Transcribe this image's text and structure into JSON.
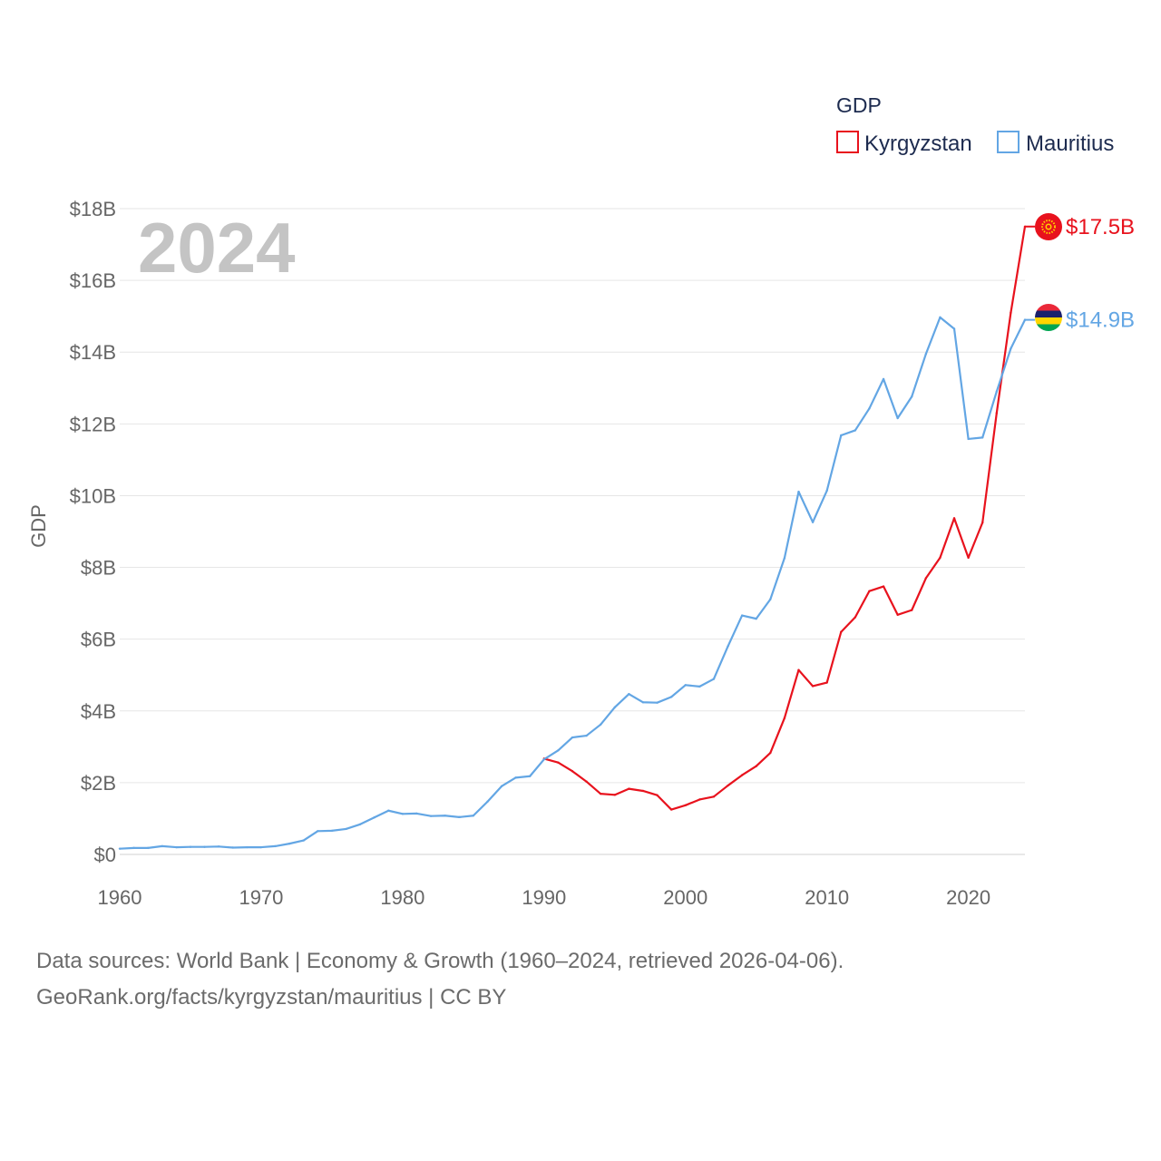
{
  "chart_data": {
    "type": "line",
    "title": "GDP",
    "year_label": "2024",
    "ylabel": "GDP",
    "xlabel": "",
    "xlim": [
      1960,
      2024
    ],
    "ylim": [
      0,
      18
    ],
    "x_ticks": [
      "1960",
      "1970",
      "1980",
      "1990",
      "2000",
      "2010",
      "2020"
    ],
    "y_ticks": [
      "$0",
      "$2B",
      "$4B",
      "$6B",
      "$8B",
      "$10B",
      "$12B",
      "$14B",
      "$16B",
      "$18B"
    ],
    "legend_position": "top-right",
    "grid": true,
    "series": [
      {
        "name": "Kyrgyzstan",
        "color": "#e8121d",
        "end_label": "$17.5B",
        "flag": "kyrgyzstan-flag",
        "x": [
          1990,
          1991,
          1992,
          1993,
          1994,
          1995,
          1996,
          1997,
          1998,
          1999,
          2000,
          2001,
          2002,
          2003,
          2004,
          2005,
          2006,
          2007,
          2008,
          2009,
          2010,
          2011,
          2012,
          2013,
          2014,
          2015,
          2016,
          2017,
          2018,
          2019,
          2020,
          2021,
          2022,
          2023,
          2024
        ],
        "values": [
          2.67,
          2.56,
          2.32,
          2.03,
          1.69,
          1.66,
          1.83,
          1.77,
          1.65,
          1.25,
          1.37,
          1.53,
          1.61,
          1.92,
          2.21,
          2.46,
          2.83,
          3.8,
          5.14,
          4.69,
          4.79,
          6.2,
          6.61,
          7.34,
          7.47,
          6.68,
          6.81,
          7.7,
          8.27,
          9.37,
          8.27,
          9.25,
          12.3,
          15.1,
          17.5
        ]
      },
      {
        "name": "Mauritius",
        "color": "#63a6e4",
        "end_label": "$14.9B",
        "flag": "mauritius-flag",
        "x": [
          1960,
          1961,
          1962,
          1963,
          1964,
          1965,
          1966,
          1967,
          1968,
          1969,
          1970,
          1971,
          1972,
          1973,
          1974,
          1975,
          1976,
          1977,
          1978,
          1979,
          1980,
          1981,
          1982,
          1983,
          1984,
          1985,
          1986,
          1987,
          1988,
          1989,
          1990,
          1991,
          1992,
          1993,
          1994,
          1995,
          1996,
          1997,
          1998,
          1999,
          2000,
          2001,
          2002,
          2003,
          2004,
          2005,
          2006,
          2007,
          2008,
          2009,
          2010,
          2011,
          2012,
          2013,
          2014,
          2015,
          2016,
          2017,
          2018,
          2019,
          2020,
          2021,
          2022,
          2023,
          2024
        ],
        "values": [
          0.16,
          0.18,
          0.18,
          0.23,
          0.2,
          0.21,
          0.21,
          0.22,
          0.19,
          0.2,
          0.2,
          0.23,
          0.3,
          0.39,
          0.65,
          0.66,
          0.71,
          0.84,
          1.03,
          1.22,
          1.13,
          1.14,
          1.07,
          1.08,
          1.04,
          1.08,
          1.47,
          1.9,
          2.14,
          2.18,
          2.65,
          2.9,
          3.26,
          3.31,
          3.62,
          4.1,
          4.47,
          4.24,
          4.23,
          4.39,
          4.72,
          4.68,
          4.89,
          5.8,
          6.66,
          6.57,
          7.11,
          8.26,
          10.11,
          9.26,
          10.14,
          11.68,
          11.82,
          12.43,
          13.25,
          12.16,
          12.76,
          13.95,
          14.97,
          14.65,
          11.58,
          11.62,
          12.9,
          14.1,
          14.9
        ]
      }
    ],
    "source_line_1": "Data sources: World Bank | Economy & Growth (1960–2024, retrieved 2026-04-06).",
    "source_line_2": "GeoRank.org/facts/kyrgyzstan/mauritius | CC BY"
  }
}
